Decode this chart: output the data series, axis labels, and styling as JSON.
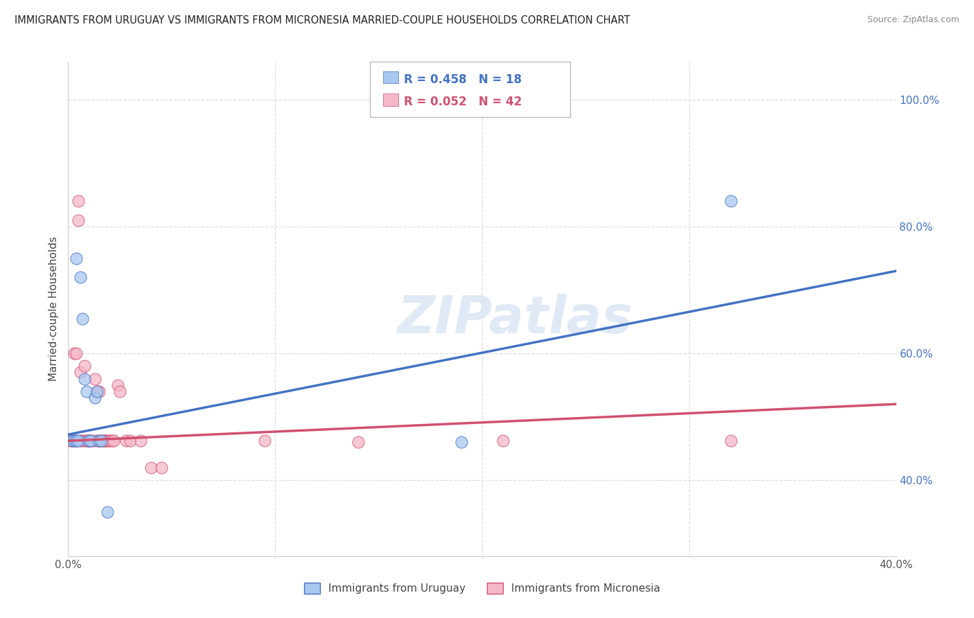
{
  "title": "IMMIGRANTS FROM URUGUAY VS IMMIGRANTS FROM MICRONESIA MARRIED-COUPLE HOUSEHOLDS CORRELATION CHART",
  "source": "Source: ZipAtlas.com",
  "ylabel": "Married-couple Households",
  "color_uruguay": "#A8C8F0",
  "color_micronesia": "#F5B8C8",
  "color_line_uruguay": "#4472C4",
  "color_line_micronesia": "#D05070",
  "legend_r_uruguay": "R = 0.458",
  "legend_n_uruguay": "N = 18",
  "legend_r_micronesia": "R = 0.052",
  "legend_n_micronesia": "N = 42",
  "watermark": "ZIPatlas",
  "xmin": 0.0,
  "xmax": 0.4,
  "ymin": 0.28,
  "ymax": 1.06,
  "uruguay_line_x0": 0.0,
  "uruguay_line_y0": 0.472,
  "uruguay_line_x1": 0.4,
  "uruguay_line_y1": 0.73,
  "micronesia_line_x0": 0.0,
  "micronesia_line_y0": 0.462,
  "micronesia_line_x1": 0.4,
  "micronesia_line_y1": 0.52,
  "uruguay_x": [
    0.002,
    0.003,
    0.004,
    0.004,
    0.005,
    0.006,
    0.007,
    0.008,
    0.009,
    0.01,
    0.011,
    0.013,
    0.014,
    0.015,
    0.016,
    0.019,
    0.32,
    0.19
  ],
  "uruguay_y": [
    0.462,
    0.462,
    0.462,
    0.75,
    0.462,
    0.72,
    0.655,
    0.56,
    0.54,
    0.462,
    0.462,
    0.53,
    0.54,
    0.462,
    0.462,
    0.35,
    0.84,
    0.46
  ],
  "micronesia_x": [
    0.001,
    0.002,
    0.003,
    0.003,
    0.004,
    0.004,
    0.005,
    0.005,
    0.006,
    0.006,
    0.007,
    0.008,
    0.008,
    0.009,
    0.01,
    0.01,
    0.011,
    0.012,
    0.013,
    0.014,
    0.014,
    0.015,
    0.015,
    0.016,
    0.017,
    0.018,
    0.018,
    0.019,
    0.02,
    0.021,
    0.022,
    0.024,
    0.025,
    0.028,
    0.03,
    0.035,
    0.04,
    0.045,
    0.095,
    0.14,
    0.21,
    0.32
  ],
  "micronesia_y": [
    0.462,
    0.462,
    0.6,
    0.462,
    0.6,
    0.462,
    0.81,
    0.84,
    0.462,
    0.57,
    0.462,
    0.58,
    0.462,
    0.462,
    0.462,
    0.462,
    0.462,
    0.462,
    0.56,
    0.54,
    0.462,
    0.54,
    0.462,
    0.462,
    0.462,
    0.462,
    0.462,
    0.462,
    0.462,
    0.462,
    0.462,
    0.55,
    0.54,
    0.462,
    0.462,
    0.462,
    0.42,
    0.42,
    0.462,
    0.46,
    0.462,
    0.462
  ],
  "background_color": "#ffffff",
  "grid_color": "#dddddd",
  "spine_color": "#cccccc"
}
